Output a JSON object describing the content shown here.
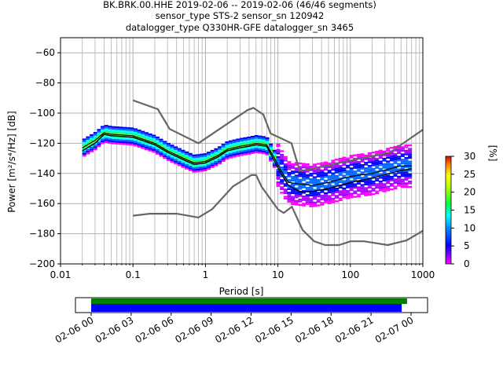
{
  "title": {
    "line1": "BK.BRK.00.HHE   2019-02-06 -- 2019-02-06  (46/46 segments)",
    "line2": "sensor_type STS-2 sensor_sn 120942",
    "line3": "datalogger_type Q330HR-GFE datalogger_sn 3465"
  },
  "chart_data": {
    "type": "heatmap",
    "xlabel": "Period [s]",
    "ylabel": "Power [m²/s⁴/Hz] [dB]",
    "xscale": "log",
    "xlim": [
      0.01,
      1000
    ],
    "ylim": [
      -200,
      -50
    ],
    "grid": true,
    "x_ticks": [
      {
        "value": 0.01,
        "label": "0.01"
      },
      {
        "value": 0.1,
        "label": "0.1"
      },
      {
        "value": 1,
        "label": "1"
      },
      {
        "value": 10,
        "label": "10"
      },
      {
        "value": 100,
        "label": "100"
      },
      {
        "value": 1000,
        "label": "1000"
      }
    ],
    "y_ticks": [
      {
        "value": -60,
        "label": "−60"
      },
      {
        "value": -80,
        "label": "−80"
      },
      {
        "value": -100,
        "label": "−100"
      },
      {
        "value": -120,
        "label": "−120"
      },
      {
        "value": -140,
        "label": "−140"
      },
      {
        "value": -160,
        "label": "−160"
      },
      {
        "value": -180,
        "label": "−180"
      },
      {
        "value": -200,
        "label": "−200"
      }
    ],
    "nhnm": {
      "x": [
        0.1,
        0.22,
        0.32,
        0.8,
        3.8,
        4.6,
        6.3,
        7.9,
        15.4,
        20,
        354.8,
        1000
      ],
      "y": [
        -91.5,
        -97.4,
        -110.5,
        -120,
        -98,
        -96.5,
        -101,
        -113.5,
        -120,
        -138.5,
        -126,
        -111
      ]
    },
    "nlnm": {
      "x": [
        0.1,
        0.17,
        0.4,
        0.8,
        1.24,
        2.4,
        4.3,
        5,
        6,
        10,
        12,
        15.6,
        21.9,
        31.6,
        45,
        70,
        101,
        154,
        328,
        600,
        1000
      ],
      "y": [
        -168,
        -166.7,
        -166.7,
        -169.2,
        -163.7,
        -148.6,
        -141.1,
        -141.1,
        -149,
        -163.8,
        -166.2,
        -162.1,
        -177.5,
        -185,
        -187.5,
        -187.5,
        -185,
        -185,
        -187.5,
        -184.4,
        -178
      ]
    },
    "mean_curve": {
      "x": [
        0.02,
        0.03,
        0.04,
        0.05,
        0.1,
        0.2,
        0.3,
        0.5,
        0.7,
        1,
        1.5,
        2,
        3,
        4,
        5,
        7,
        9,
        11,
        14,
        20,
        30,
        50,
        100,
        200,
        500,
        700
      ],
      "y": [
        -125,
        -120,
        -114,
        -115,
        -116,
        -121,
        -126,
        -131,
        -134,
        -133,
        -129,
        -125,
        -123,
        -122,
        -121,
        -122,
        -132,
        -140,
        -148,
        -152,
        -152,
        -150,
        -146,
        -143,
        -138,
        -137
      ]
    },
    "mode_curve": {
      "x": [
        0.02,
        0.03,
        0.04,
        0.05,
        0.1,
        0.2,
        0.3,
        0.5,
        0.7,
        1,
        1.5,
        2,
        3,
        4,
        5,
        7,
        9,
        11,
        14,
        20,
        30,
        50,
        100,
        200,
        500,
        700
      ],
      "y": [
        -123,
        -118,
        -113,
        -114,
        -115,
        -120,
        -125,
        -130,
        -133,
        -132,
        -128,
        -124,
        -122,
        -121,
        -120,
        -121,
        -130,
        -138,
        -146,
        -147,
        -148,
        -146,
        -142,
        -140,
        -135,
        -135
      ]
    },
    "colorbar": {
      "label": "[%]",
      "range": [
        0,
        30
      ],
      "ticks": [
        {
          "value": 0,
          "label": "0"
        },
        {
          "value": 5,
          "label": "5"
        },
        {
          "value": 10,
          "label": "10"
        },
        {
          "value": 15,
          "label": "15"
        },
        {
          "value": 20,
          "label": "20"
        },
        {
          "value": 25,
          "label": "25"
        },
        {
          "value": 30,
          "label": "30"
        }
      ]
    },
    "colors": {
      "model_lines": "#666666",
      "mean_line": "#000000",
      "grid": "#b0b0b0",
      "coverage_data": "#008000",
      "coverage_used": "#0000ff"
    }
  },
  "coverage": {
    "start_hour": 0,
    "end_hour": 24,
    "data_span_hours": [
      0,
      23.7
    ],
    "used_span_hours": [
      0,
      23.3
    ],
    "ticks": [
      {
        "hour": 0,
        "label": "02-06 00"
      },
      {
        "hour": 3,
        "label": "02-06 03"
      },
      {
        "hour": 6,
        "label": "02-06 06"
      },
      {
        "hour": 9,
        "label": "02-06 09"
      },
      {
        "hour": 12,
        "label": "02-06 12"
      },
      {
        "hour": 15,
        "label": "02-06 15"
      },
      {
        "hour": 18,
        "label": "02-06 18"
      },
      {
        "hour": 21,
        "label": "02-06 21"
      },
      {
        "hour": 24,
        "label": "02-07 00"
      }
    ]
  }
}
